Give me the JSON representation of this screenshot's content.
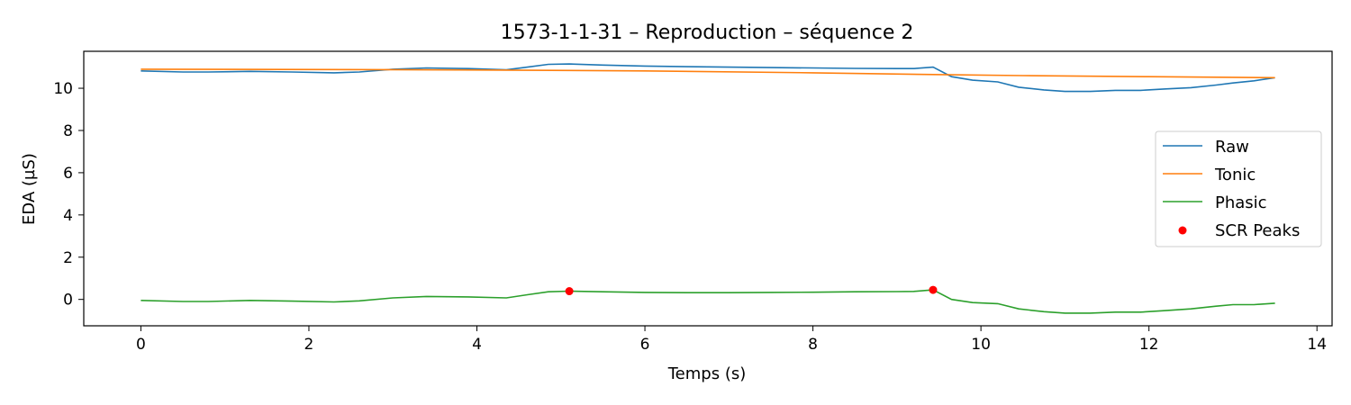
{
  "chart_data": {
    "type": "line",
    "title": "1573-1-1-31 – Reproduction – séquence 2",
    "xlabel": "Temps (s)",
    "ylabel": "EDA (µS)",
    "xlim": [
      -0.68,
      14.18
    ],
    "ylim": [
      -1.25,
      11.75
    ],
    "xticks": [
      0,
      2,
      4,
      6,
      8,
      10,
      12,
      14
    ],
    "yticks": [
      0,
      2,
      4,
      6,
      8,
      10
    ],
    "grid": false,
    "legend": "center-right",
    "series": [
      {
        "name": "Raw",
        "color": "#1f77b4",
        "marker": "line",
        "x": [
          0,
          0.5,
          0.8,
          1.3,
          1.8,
          2.3,
          2.6,
          3.0,
          3.4,
          3.9,
          4.35,
          4.6,
          4.85,
          5.1,
          5.5,
          6.0,
          6.5,
          7.0,
          7.5,
          8.0,
          8.5,
          9.0,
          9.2,
          9.43,
          9.65,
          9.9,
          10.2,
          10.45,
          10.75,
          11.0,
          11.3,
          11.6,
          11.9,
          12.2,
          12.5,
          12.8,
          13.0,
          13.25,
          13.5
        ],
        "y": [
          10.82,
          10.77,
          10.77,
          10.8,
          10.77,
          10.73,
          10.77,
          10.9,
          10.96,
          10.93,
          10.87,
          11.0,
          11.13,
          11.15,
          11.1,
          11.05,
          11.02,
          11.0,
          10.98,
          10.96,
          10.94,
          10.93,
          10.93,
          11.0,
          10.55,
          10.38,
          10.3,
          10.05,
          9.92,
          9.85,
          9.85,
          9.9,
          9.9,
          9.97,
          10.03,
          10.15,
          10.25,
          10.35,
          10.5
        ]
      },
      {
        "name": "Tonic",
        "color": "#ff7f0e",
        "marker": "line",
        "x": [
          0,
          3.0,
          4.35,
          6.0,
          8.0,
          9.43,
          10.5,
          12.0,
          13.5
        ],
        "y": [
          10.9,
          10.88,
          10.86,
          10.82,
          10.73,
          10.65,
          10.6,
          10.55,
          10.5
        ]
      },
      {
        "name": "Phasic",
        "color": "#2ca02c",
        "marker": "line",
        "x": [
          0,
          0.5,
          0.8,
          1.3,
          1.8,
          2.3,
          2.6,
          3.0,
          3.4,
          3.9,
          4.35,
          4.6,
          4.85,
          5.1,
          5.5,
          6.0,
          6.5,
          7.0,
          7.5,
          8.0,
          8.5,
          9.0,
          9.2,
          9.43,
          9.65,
          9.9,
          10.2,
          10.45,
          10.75,
          11.0,
          11.3,
          11.6,
          11.9,
          12.2,
          12.5,
          12.8,
          13.0,
          13.25,
          13.5
        ],
        "y": [
          -0.05,
          -0.1,
          -0.1,
          -0.05,
          -0.08,
          -0.12,
          -0.07,
          0.07,
          0.14,
          0.12,
          0.07,
          0.22,
          0.36,
          0.39,
          0.36,
          0.33,
          0.32,
          0.32,
          0.33,
          0.34,
          0.36,
          0.37,
          0.38,
          0.45,
          0.0,
          -0.15,
          -0.2,
          -0.45,
          -0.58,
          -0.65,
          -0.65,
          -0.6,
          -0.6,
          -0.53,
          -0.45,
          -0.32,
          -0.25,
          -0.25,
          -0.18
        ]
      },
      {
        "name": "SCR Peaks",
        "color": "#ff0000",
        "marker": "scatter",
        "x": [
          5.1,
          9.43
        ],
        "y": [
          0.39,
          0.45
        ]
      }
    ]
  }
}
